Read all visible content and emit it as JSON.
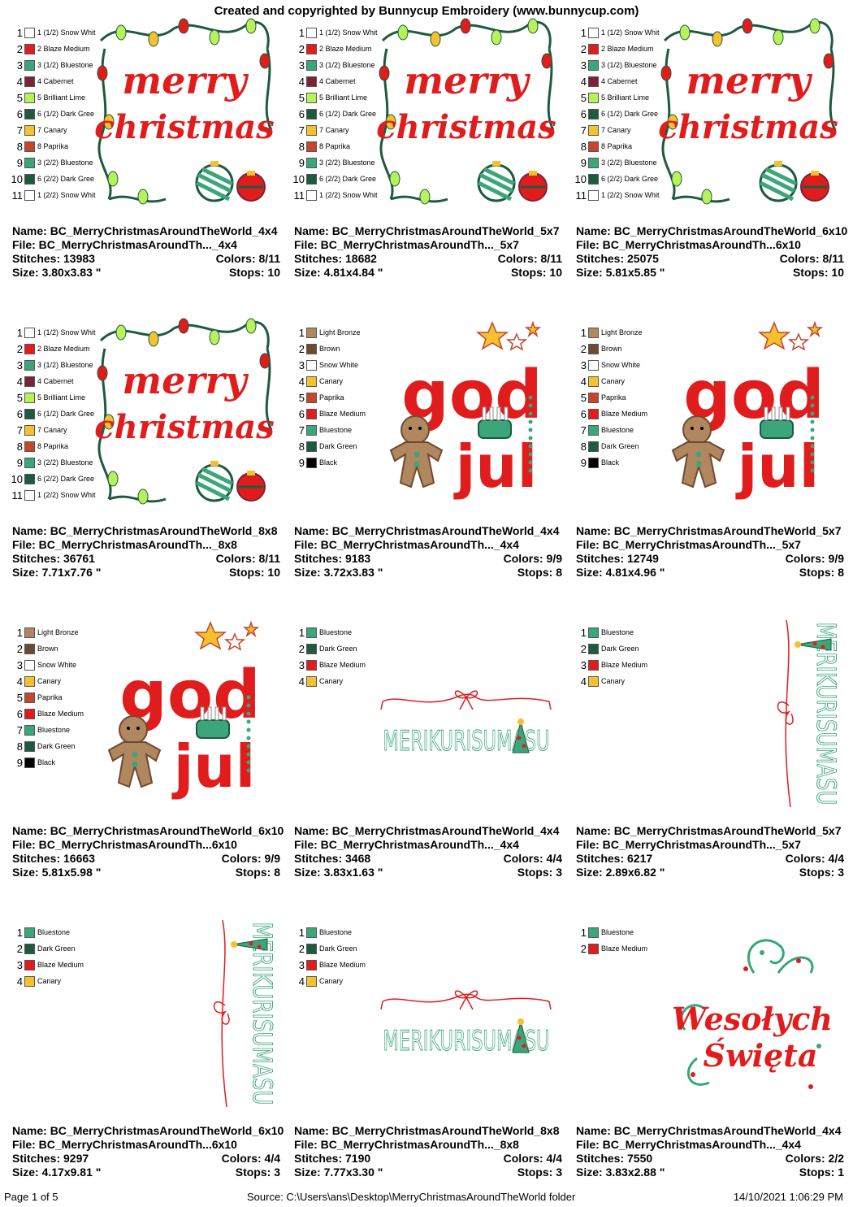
{
  "header": "Created and copyrighted by Bunnycup Embroidery (www.bunnycup.com)",
  "colors": {
    "Snow White": "#ffffff",
    "Blaze Medium": "#e01c1c",
    "Bluestone": "#3aa67a",
    "Cabernet": "#7a2338",
    "Brilliant Lime": "#b8f25a",
    "Dark Green": "#1d5a3f",
    "Canary": "#f3c22e",
    "Paprika": "#c5452d",
    "Light Bronze": "#b0875e",
    "Brown": "#6e4a33",
    "Black": "#000000"
  },
  "labels": {
    "name": "Name:",
    "file": "File:",
    "stitches": "Stitches:",
    "size": "Size:",
    "colors": "Colors:",
    "stops": "Stops:"
  },
  "designs": [
    {
      "art": "merry-christmas",
      "legend": [
        [
          "1",
          "1 (1/2) Snow Whit",
          "Snow White"
        ],
        [
          "2",
          "2 Blaze Medium",
          "Blaze Medium"
        ],
        [
          "3",
          "3 (1/2) Bluestone",
          "Bluestone"
        ],
        [
          "4",
          "4 Cabernet",
          "Cabernet"
        ],
        [
          "5",
          "5 Brilliant Lime",
          "Brilliant Lime"
        ],
        [
          "6",
          "6 (1/2) Dark Gree",
          "Dark Green"
        ],
        [
          "7",
          "7 Canary",
          "Canary"
        ],
        [
          "8",
          "8 Paprika",
          "Paprika"
        ],
        [
          "9",
          "3 (2/2) Bluestone",
          "Bluestone"
        ],
        [
          "10",
          "6 (2/2) Dark Gree",
          "Dark Green"
        ],
        [
          "11",
          "1 (2/2) Snow Whit",
          "Snow White"
        ]
      ],
      "name": "BC_MerryChristmasAroundTheWorld_4x4",
      "file": "BC_MerryChristmasAroundTh..._4x4",
      "stitches": "13983",
      "colors": "8/11",
      "size": "3.80x3.83 \"",
      "stops": "10"
    },
    {
      "art": "merry-christmas",
      "legend": [
        [
          "1",
          "1 (1/2) Snow Whit",
          "Snow White"
        ],
        [
          "2",
          "2 Blaze Medium",
          "Blaze Medium"
        ],
        [
          "3",
          "3 (1/2) Bluestone",
          "Bluestone"
        ],
        [
          "4",
          "4 Cabernet",
          "Cabernet"
        ],
        [
          "5",
          "5 Brilliant Lime",
          "Brilliant Lime"
        ],
        [
          "6",
          "6 (1/2) Dark Gree",
          "Dark Green"
        ],
        [
          "7",
          "7 Canary",
          "Canary"
        ],
        [
          "8",
          "8 Paprika",
          "Paprika"
        ],
        [
          "9",
          "3 (2/2) Bluestone",
          "Bluestone"
        ],
        [
          "10",
          "6 (2/2) Dark Gree",
          "Dark Green"
        ],
        [
          "11",
          "1 (2/2) Snow Whit",
          "Snow White"
        ]
      ],
      "name": "BC_MerryChristmasAroundTheWorld_5x7",
      "file": "BC_MerryChristmasAroundTh..._5x7",
      "stitches": "18682",
      "colors": "8/11",
      "size": "4.81x4.84 \"",
      "stops": "10"
    },
    {
      "art": "merry-christmas",
      "legend": [
        [
          "1",
          "1 (1/2) Snow Whit",
          "Snow White"
        ],
        [
          "2",
          "2 Blaze Medium",
          "Blaze Medium"
        ],
        [
          "3",
          "3 (1/2) Bluestone",
          "Bluestone"
        ],
        [
          "4",
          "4 Cabernet",
          "Cabernet"
        ],
        [
          "5",
          "5 Brilliant Lime",
          "Brilliant Lime"
        ],
        [
          "6",
          "6 (1/2) Dark Gree",
          "Dark Green"
        ],
        [
          "7",
          "7 Canary",
          "Canary"
        ],
        [
          "8",
          "8 Paprika",
          "Paprika"
        ],
        [
          "9",
          "3 (2/2) Bluestone",
          "Bluestone"
        ],
        [
          "10",
          "6 (2/2) Dark Gree",
          "Dark Green"
        ],
        [
          "11",
          "1 (2/2) Snow Whit",
          "Snow White"
        ]
      ],
      "name": "BC_MerryChristmasAroundTheWorld_6x10",
      "file": "BC_MerryChristmasAroundTh...6x10",
      "stitches": "25075",
      "colors": "8/11",
      "size": "5.81x5.85 \"",
      "stops": "10"
    },
    {
      "art": "merry-christmas",
      "legend": [
        [
          "1",
          "1 (1/2) Snow Whit",
          "Snow White"
        ],
        [
          "2",
          "2 Blaze Medium",
          "Blaze Medium"
        ],
        [
          "3",
          "3 (1/2) Bluestone",
          "Bluestone"
        ],
        [
          "4",
          "4 Cabernet",
          "Cabernet"
        ],
        [
          "5",
          "5 Brilliant Lime",
          "Brilliant Lime"
        ],
        [
          "6",
          "6 (1/2) Dark Gree",
          "Dark Green"
        ],
        [
          "7",
          "7 Canary",
          "Canary"
        ],
        [
          "8",
          "8 Paprika",
          "Paprika"
        ],
        [
          "9",
          "3 (2/2) Bluestone",
          "Bluestone"
        ],
        [
          "10",
          "6 (2/2) Dark Gree",
          "Dark Green"
        ],
        [
          "11",
          "1 (2/2) Snow Whit",
          "Snow White"
        ]
      ],
      "name": "BC_MerryChristmasAroundTheWorld_8x8",
      "file": "BC_MerryChristmasAroundTh..._8x8",
      "stitches": "36761",
      "colors": "8/11",
      "size": "7.71x7.76 \"",
      "stops": "10"
    },
    {
      "art": "god-jul",
      "legend": [
        [
          "1",
          "Light Bronze",
          "Light Bronze"
        ],
        [
          "2",
          "Brown",
          "Brown"
        ],
        [
          "3",
          "Snow White",
          "Snow White"
        ],
        [
          "4",
          "Canary",
          "Canary"
        ],
        [
          "5",
          "Paprika",
          "Paprika"
        ],
        [
          "6",
          "Blaze Medium",
          "Blaze Medium"
        ],
        [
          "7",
          "Bluestone",
          "Bluestone"
        ],
        [
          "8",
          "Dark Green",
          "Dark Green"
        ],
        [
          "9",
          "Black",
          "Black"
        ]
      ],
      "name": "BC_MerryChristmasAroundTheWorld_4x4",
      "file": "BC_MerryChristmasAroundTh..._4x4",
      "stitches": "9183",
      "colors": "9/9",
      "size": "3.72x3.83 \"",
      "stops": "8"
    },
    {
      "art": "god-jul",
      "legend": [
        [
          "1",
          "Light Bronze",
          "Light Bronze"
        ],
        [
          "2",
          "Brown",
          "Brown"
        ],
        [
          "3",
          "Snow White",
          "Snow White"
        ],
        [
          "4",
          "Canary",
          "Canary"
        ],
        [
          "5",
          "Paprika",
          "Paprika"
        ],
        [
          "6",
          "Blaze Medium",
          "Blaze Medium"
        ],
        [
          "7",
          "Bluestone",
          "Bluestone"
        ],
        [
          "8",
          "Dark Green",
          "Dark Green"
        ],
        [
          "9",
          "Black",
          "Black"
        ]
      ],
      "name": "BC_MerryChristmasAroundTheWorld_5x7",
      "file": "BC_MerryChristmasAroundTh..._5x7",
      "stitches": "12749",
      "colors": "9/9",
      "size": "4.81x4.96 \"",
      "stops": "8"
    },
    {
      "art": "god-jul",
      "legend": [
        [
          "1",
          "Light Bronze",
          "Light Bronze"
        ],
        [
          "2",
          "Brown",
          "Brown"
        ],
        [
          "3",
          "Snow White",
          "Snow White"
        ],
        [
          "4",
          "Canary",
          "Canary"
        ],
        [
          "5",
          "Paprika",
          "Paprika"
        ],
        [
          "6",
          "Blaze Medium",
          "Blaze Medium"
        ],
        [
          "7",
          "Bluestone",
          "Bluestone"
        ],
        [
          "8",
          "Dark Green",
          "Dark Green"
        ],
        [
          "9",
          "Black",
          "Black"
        ]
      ],
      "name": "BC_MerryChristmasAroundTheWorld_6x10",
      "file": "BC_MerryChristmasAroundTh...6x10",
      "stitches": "16663",
      "colors": "9/9",
      "size": "5.81x5.98 \"",
      "stops": "8"
    },
    {
      "art": "merikurisumasu-h",
      "legend": [
        [
          "1",
          "Bluestone",
          "Bluestone"
        ],
        [
          "2",
          "Dark Green",
          "Dark Green"
        ],
        [
          "3",
          "Blaze Medium",
          "Blaze Medium"
        ],
        [
          "4",
          "Canary",
          "Canary"
        ]
      ],
      "name": "BC_MerryChristmasAroundTheWorld_4x4",
      "file": "BC_MerryChristmasAroundTh..._4x4",
      "stitches": "3468",
      "colors": "4/4",
      "size": "3.83x1.63 \"",
      "stops": "3"
    },
    {
      "art": "merikurisumasu-v",
      "legend": [
        [
          "1",
          "Bluestone",
          "Bluestone"
        ],
        [
          "2",
          "Dark Green",
          "Dark Green"
        ],
        [
          "3",
          "Blaze Medium",
          "Blaze Medium"
        ],
        [
          "4",
          "Canary",
          "Canary"
        ]
      ],
      "name": "BC_MerryChristmasAroundTheWorld_5x7",
      "file": "BC_MerryChristmasAroundTh..._5x7",
      "stitches": "6217",
      "colors": "4/4",
      "size": "2.89x6.82 \"",
      "stops": "3"
    },
    {
      "art": "merikurisumasu-v",
      "legend": [
        [
          "1",
          "Bluestone",
          "Bluestone"
        ],
        [
          "2",
          "Dark Green",
          "Dark Green"
        ],
        [
          "3",
          "Blaze Medium",
          "Blaze Medium"
        ],
        [
          "4",
          "Canary",
          "Canary"
        ]
      ],
      "name": "BC_MerryChristmasAroundTheWorld_6x10",
      "file": "BC_MerryChristmasAroundTh...6x10",
      "stitches": "9297",
      "colors": "4/4",
      "size": "4.17x9.81 \"",
      "stops": "3"
    },
    {
      "art": "merikurisumasu-h",
      "legend": [
        [
          "1",
          "Bluestone",
          "Bluestone"
        ],
        [
          "2",
          "Dark Green",
          "Dark Green"
        ],
        [
          "3",
          "Blaze Medium",
          "Blaze Medium"
        ],
        [
          "4",
          "Canary",
          "Canary"
        ]
      ],
      "name": "BC_MerryChristmasAroundTheWorld_8x8",
      "file": "BC_MerryChristmasAroundTh..._8x8",
      "stitches": "7190",
      "colors": "4/4",
      "size": "7.77x3.30 \"",
      "stops": "3"
    },
    {
      "art": "wesolych-swiat",
      "legend": [
        [
          "1",
          "Bluestone",
          "Bluestone"
        ],
        [
          "2",
          "Blaze Medium",
          "Blaze Medium"
        ]
      ],
      "name": "BC_MerryChristmasAroundTheWorld_4x4",
      "file": "BC_MerryChristmasAroundTh..._4x4",
      "stitches": "7550",
      "colors": "2/2",
      "size": "3.83x2.88 \"",
      "stops": "1"
    }
  ],
  "art_text": {
    "merry": "merry",
    "christmas": "christmas",
    "god": "god",
    "jul": "jul",
    "merikurisumasu": "MERIKURISUMASU",
    "wesolych": "Wesołych",
    "swiat": "Święta"
  },
  "footer": {
    "page": "Page 1 of 5",
    "source": "Source: C:\\Users\\ans\\Desktop\\MerryChristmasAroundTheWorld folder",
    "date": "14/10/2021 1:06:29 PM"
  }
}
